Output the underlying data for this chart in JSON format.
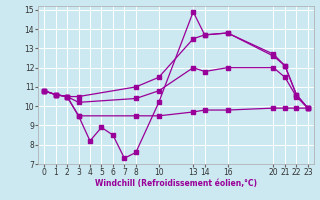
{
  "xlabel": "Windchill (Refroidissement éolien,°C)",
  "bg_color": "#cce8f0",
  "line_color": "#990099",
  "grid_color": "#ffffff",
  "xlim": [
    -0.5,
    23.5
  ],
  "ylim": [
    7,
    15.2
  ],
  "yticks": [
    7,
    8,
    9,
    10,
    11,
    12,
    13,
    14,
    15
  ],
  "xtick_positions": [
    0,
    1,
    2,
    3,
    4,
    5,
    6,
    7,
    8,
    10,
    13,
    14,
    16,
    20,
    21,
    22,
    23
  ],
  "xtick_labels": [
    "0",
    "1",
    "2",
    "3",
    "4",
    "5",
    "6",
    "7",
    "8",
    "10",
    "13",
    "14",
    "16",
    "20",
    "21",
    "22",
    "23"
  ],
  "series": [
    {
      "x": [
        0,
        1,
        2,
        3,
        4,
        5,
        6,
        7,
        8,
        10,
        13,
        14,
        16,
        20,
        21,
        22,
        23
      ],
      "y": [
        10.8,
        10.6,
        10.5,
        9.5,
        8.2,
        8.9,
        8.5,
        7.3,
        7.6,
        10.2,
        14.9,
        13.7,
        13.8,
        12.7,
        12.1,
        10.6,
        9.9
      ]
    },
    {
      "x": [
        0,
        1,
        2,
        3,
        8,
        10,
        13,
        14,
        16,
        20,
        21,
        22,
        23
      ],
      "y": [
        10.8,
        10.6,
        10.5,
        10.5,
        11.0,
        11.5,
        13.5,
        13.7,
        13.8,
        12.6,
        12.1,
        10.6,
        9.9
      ]
    },
    {
      "x": [
        0,
        1,
        2,
        3,
        8,
        10,
        13,
        14,
        16,
        20,
        21,
        22,
        23
      ],
      "y": [
        10.8,
        10.6,
        10.5,
        10.2,
        10.4,
        10.8,
        12.0,
        11.8,
        12.0,
        12.0,
        11.5,
        10.5,
        9.9
      ]
    },
    {
      "x": [
        0,
        1,
        2,
        3,
        8,
        10,
        13,
        14,
        16,
        20,
        21,
        22,
        23
      ],
      "y": [
        10.8,
        10.6,
        10.5,
        9.5,
        9.5,
        9.5,
        9.7,
        9.8,
        9.8,
        9.9,
        9.9,
        9.9,
        9.9
      ]
    }
  ]
}
